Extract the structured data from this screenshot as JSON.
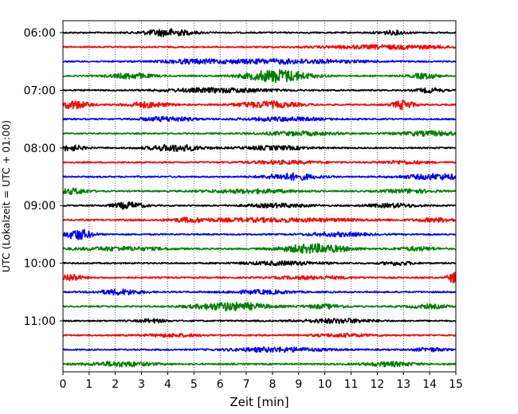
{
  "chart_data": {
    "type": "line",
    "title": "",
    "xlabel": "Zeit  [min]",
    "ylabel": "UTC (Lokalzeit = UTC + 01:00)",
    "xlim": [
      0,
      15
    ],
    "x_ticks": [
      0,
      1,
      2,
      3,
      4,
      5,
      6,
      7,
      8,
      9,
      10,
      11,
      12,
      13,
      14,
      15
    ],
    "x_tick_labels": [
      "0",
      "1",
      "2",
      "3",
      "4",
      "5",
      "6",
      "7",
      "8",
      "9",
      "10",
      "11",
      "12",
      "13",
      "14",
      "15"
    ],
    "y_tick_labels": [
      "06:00",
      "07:00",
      "08:00",
      "09:00",
      "10:00",
      "11:00"
    ],
    "grid": "vertical dotted at each minute",
    "row_interval_minutes": 15,
    "color_cycle": [
      "#000000",
      "#ff0000",
      "#0000ff",
      "#008000"
    ],
    "rows": [
      {
        "start": "06:00",
        "color": "#000000",
        "bursts": [
          [
            4.0,
            0.9,
            2.0
          ],
          [
            12.6,
            0.6,
            1.0
          ]
        ]
      },
      {
        "start": "06:15",
        "color": "#ff0000",
        "bursts": [
          [
            12.5,
            2.5,
            1.0
          ]
        ]
      },
      {
        "start": "06:30",
        "color": "#0000ff",
        "bursts": [
          [
            8.2,
            3.0,
            1.2
          ],
          [
            4.8,
            1.0,
            0.8
          ]
        ]
      },
      {
        "start": "06:45",
        "color": "#008000",
        "bursts": [
          [
            8.2,
            1.2,
            3.5
          ],
          [
            2.6,
            0.8,
            1.5
          ],
          [
            13.8,
            0.5,
            1.5
          ]
        ]
      },
      {
        "start": "07:00",
        "color": "#000000",
        "bursts": [
          [
            6.0,
            2.0,
            1.2
          ],
          [
            14.0,
            0.5,
            1.2
          ]
        ]
      },
      {
        "start": "07:15",
        "color": "#ff0000",
        "bursts": [
          [
            0.4,
            0.6,
            2.2
          ],
          [
            3.2,
            0.8,
            1.5
          ],
          [
            7.8,
            1.2,
            1.7
          ],
          [
            13.0,
            0.4,
            2.5
          ]
        ]
      },
      {
        "start": "07:30",
        "color": "#0000ff",
        "bursts": [
          [
            4.0,
            1.0,
            1.2
          ],
          [
            8.4,
            1.5,
            1.0
          ]
        ]
      },
      {
        "start": "07:45",
        "color": "#008000",
        "bursts": [
          [
            9.0,
            1.5,
            1.0
          ],
          [
            14.0,
            1.2,
            1.2
          ]
        ]
      },
      {
        "start": "08:00",
        "color": "#000000",
        "bursts": [
          [
            0.3,
            0.5,
            1.5
          ],
          [
            4.3,
            1.0,
            1.8
          ],
          [
            8.1,
            1.3,
            1.0
          ]
        ]
      },
      {
        "start": "08:15",
        "color": "#ff0000",
        "bursts": [
          [
            8.4,
            1.5,
            0.8
          ],
          [
            13.0,
            1.0,
            0.8
          ]
        ]
      },
      {
        "start": "08:30",
        "color": "#0000ff",
        "bursts": [
          [
            8.7,
            1.0,
            1.8
          ],
          [
            14.3,
            1.3,
            1.5
          ]
        ]
      },
      {
        "start": "08:45",
        "color": "#008000",
        "bursts": [
          [
            0.4,
            0.6,
            1.5
          ],
          [
            7.2,
            1.8,
            1.0
          ],
          [
            13.2,
            1.0,
            1.0
          ]
        ]
      },
      {
        "start": "09:00",
        "color": "#000000",
        "bursts": [
          [
            2.5,
            0.6,
            1.8
          ],
          [
            8.2,
            1.2,
            1.0
          ],
          [
            12.6,
            1.0,
            1.0
          ]
        ]
      },
      {
        "start": "09:15",
        "color": "#ff0000",
        "bursts": [
          [
            8.0,
            3.5,
            1.0
          ],
          [
            4.8,
            0.6,
            0.8
          ],
          [
            14.3,
            0.8,
            1.0
          ]
        ]
      },
      {
        "start": "09:30",
        "color": "#0000ff",
        "bursts": [
          [
            0.6,
            0.5,
            3.0
          ],
          [
            10.5,
            1.2,
            1.0
          ]
        ]
      },
      {
        "start": "09:45",
        "color": "#008000",
        "bursts": [
          [
            9.6,
            1.3,
            2.5
          ],
          [
            2.2,
            1.8,
            1.0
          ],
          [
            13.5,
            0.8,
            1.0
          ]
        ]
      },
      {
        "start": "10:00",
        "color": "#000000",
        "bursts": [
          [
            8.4,
            1.5,
            1.0
          ],
          [
            12.8,
            0.6,
            1.0
          ]
        ]
      },
      {
        "start": "10:15",
        "color": "#ff0000",
        "bursts": [
          [
            0.3,
            0.4,
            2.0
          ],
          [
            9.5,
            1.5,
            0.8
          ],
          [
            14.9,
            0.2,
            3.0
          ]
        ]
      },
      {
        "start": "10:30",
        "color": "#0000ff",
        "bursts": [
          [
            2.2,
            0.8,
            1.5
          ],
          [
            7.6,
            1.2,
            1.0
          ]
        ]
      },
      {
        "start": "10:45",
        "color": "#008000",
        "bursts": [
          [
            6.4,
            1.4,
            2.2
          ],
          [
            10.0,
            0.8,
            1.0
          ],
          [
            14.0,
            0.8,
            1.0
          ]
        ]
      },
      {
        "start": "11:00",
        "color": "#000000",
        "bursts": [
          [
            10.5,
            1.3,
            1.2
          ],
          [
            3.4,
            0.5,
            1.0
          ]
        ]
      },
      {
        "start": "11:15",
        "color": "#ff0000",
        "bursts": [
          [
            4.2,
            1.0,
            0.8
          ],
          [
            10.7,
            1.2,
            0.8
          ]
        ]
      },
      {
        "start": "11:30",
        "color": "#0000ff",
        "bursts": [
          [
            8.2,
            1.8,
            1.2
          ],
          [
            14.0,
            0.6,
            1.0
          ]
        ]
      },
      {
        "start": "11:45",
        "color": "#008000",
        "bursts": [
          [
            2.2,
            1.2,
            1.3
          ],
          [
            12.5,
            1.0,
            1.2
          ]
        ]
      }
    ]
  }
}
